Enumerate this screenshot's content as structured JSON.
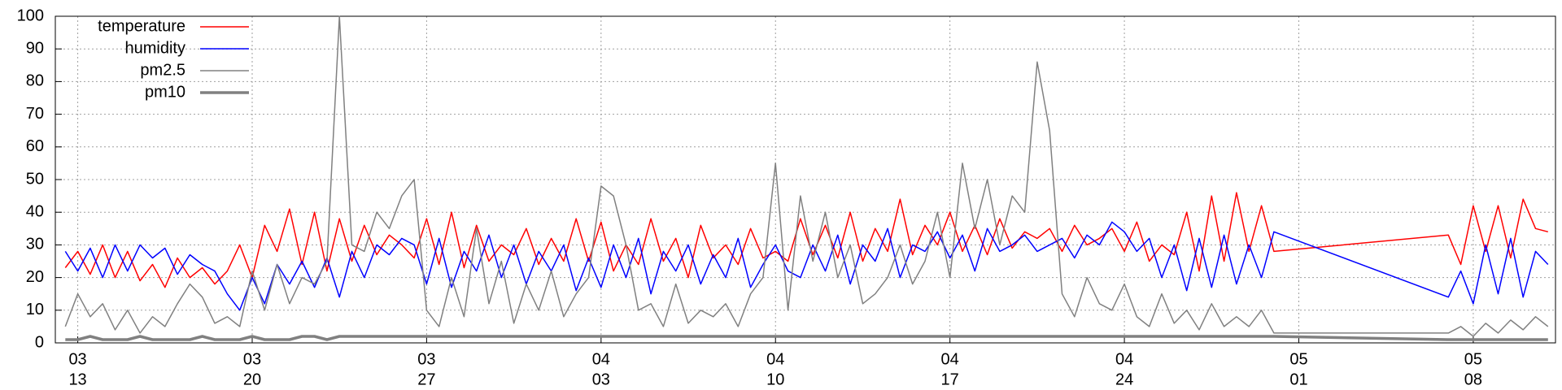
{
  "chart_data": {
    "type": "line",
    "x": [
      71.5,
      72,
      72.5,
      73,
      73.5,
      74,
      74.5,
      75,
      75.5,
      76,
      76.5,
      77,
      77.5,
      78,
      78.5,
      79,
      79.5,
      80,
      80.5,
      81,
      81.5,
      82,
      82.5,
      83,
      83.5,
      84,
      84.5,
      85,
      85.5,
      86,
      86.5,
      87,
      87.5,
      88,
      88.5,
      89,
      89.5,
      90,
      90.5,
      91,
      91.5,
      92,
      92.5,
      93,
      93.5,
      94,
      94.5,
      95,
      95.5,
      96,
      96.5,
      97,
      97.5,
      98,
      98.5,
      99,
      99.5,
      100,
      100.5,
      101,
      101.5,
      102,
      102.5,
      103,
      103.5,
      104,
      104.5,
      105,
      105.5,
      106,
      106.5,
      107,
      107.5,
      108,
      108.5,
      109,
      109.5,
      110,
      110.5,
      111,
      111.5,
      112,
      112.5,
      113,
      113.5,
      114,
      114.5,
      115,
      115.5,
      116,
      116.5,
      117,
      117.5,
      118,
      118.5,
      119,
      119.5,
      120,
      127,
      127.5,
      128,
      128.5,
      129,
      129.5,
      130,
      130.5,
      131
    ],
    "series": [
      {
        "name": "temperature",
        "color": "#ff0000",
        "width": 1.5,
        "values": [
          23,
          28,
          21,
          30,
          20,
          28,
          19,
          24,
          17,
          26,
          20,
          23,
          18,
          22,
          30,
          20,
          36,
          28,
          41,
          24,
          40,
          22,
          38,
          25,
          36,
          27,
          33,
          30,
          26,
          38,
          24,
          40,
          23,
          36,
          25,
          30,
          27,
          35,
          24,
          32,
          25,
          38,
          25,
          37,
          22,
          30,
          24,
          38,
          25,
          32,
          20,
          36,
          26,
          30,
          24,
          35,
          26,
          28,
          25,
          38,
          27,
          36,
          26,
          40,
          25,
          35,
          28,
          44,
          27,
          36,
          30,
          40,
          28,
          36,
          27,
          38,
          29,
          34,
          32,
          35,
          28,
          36,
          30,
          32,
          35,
          28,
          37,
          25,
          30,
          27,
          40,
          22,
          45,
          25,
          46,
          28,
          42,
          28,
          33,
          24,
          42,
          28,
          42,
          26,
          44,
          35,
          34
        ]
      },
      {
        "name": "humidity",
        "color": "#0000ff",
        "width": 1.5,
        "values": [
          28,
          22,
          29,
          20,
          30,
          22,
          30,
          26,
          29,
          21,
          27,
          24,
          22,
          15,
          10,
          20,
          12,
          24,
          18,
          25,
          17,
          26,
          14,
          28,
          20,
          30,
          27,
          32,
          30,
          18,
          32,
          17,
          28,
          22,
          33,
          20,
          30,
          18,
          28,
          22,
          30,
          16,
          26,
          17,
          30,
          20,
          32,
          15,
          28,
          22,
          30,
          18,
          27,
          20,
          32,
          17,
          24,
          30,
          22,
          20,
          30,
          22,
          33,
          18,
          30,
          25,
          35,
          20,
          30,
          28,
          34,
          26,
          33,
          22,
          35,
          28,
          30,
          33,
          28,
          30,
          32,
          26,
          33,
          30,
          37,
          34,
          28,
          32,
          20,
          30,
          16,
          32,
          17,
          33,
          18,
          30,
          20,
          34,
          14,
          22,
          12,
          30,
          15,
          32,
          14,
          28,
          24
        ]
      },
      {
        "name": "pm2.5",
        "color": "#808080",
        "width": 1.5,
        "values": [
          5,
          15,
          8,
          12,
          4,
          10,
          3,
          8,
          5,
          12,
          18,
          14,
          6,
          8,
          5,
          22,
          10,
          24,
          12,
          20,
          18,
          25,
          100,
          30,
          28,
          40,
          35,
          45,
          50,
          10,
          5,
          20,
          8,
          35,
          12,
          25,
          6,
          18,
          10,
          22,
          8,
          15,
          20,
          48,
          45,
          30,
          10,
          12,
          5,
          18,
          6,
          10,
          8,
          12,
          5,
          15,
          20,
          55,
          10,
          45,
          25,
          40,
          20,
          30,
          12,
          15,
          20,
          30,
          18,
          25,
          40,
          20,
          55,
          35,
          50,
          30,
          45,
          40,
          86,
          65,
          15,
          8,
          20,
          12,
          10,
          18,
          8,
          5,
          15,
          6,
          10,
          4,
          12,
          5,
          8,
          5,
          10,
          3,
          3,
          5,
          2,
          6,
          3,
          7,
          4,
          8,
          5
        ]
      },
      {
        "name": "pm10",
        "color": "#808080",
        "width": 3.5,
        "values": [
          1,
          1,
          2,
          1,
          1,
          1,
          2,
          1,
          1,
          1,
          1,
          2,
          1,
          1,
          1,
          2,
          1,
          1,
          1,
          2,
          2,
          1,
          2,
          2,
          2,
          2,
          2,
          2,
          2,
          2,
          2,
          2,
          2,
          2,
          2,
          2,
          2,
          2,
          2,
          2,
          2,
          2,
          2,
          2,
          2,
          2,
          2,
          2,
          2,
          2,
          2,
          2,
          2,
          2,
          2,
          2,
          2,
          2,
          2,
          2,
          2,
          2,
          2,
          2,
          2,
          2,
          2,
          2,
          2,
          2,
          2,
          2,
          2,
          2,
          2,
          2,
          2,
          2,
          2,
          2,
          2,
          2,
          2,
          2,
          2,
          2,
          2,
          2,
          2,
          2,
          2,
          2,
          2,
          2,
          2,
          2,
          2,
          2,
          1,
          1,
          1,
          1,
          1,
          1,
          1,
          1,
          1
        ]
      }
    ],
    "xlim": [
      71.1,
      131.3
    ],
    "ylim": [
      0,
      100
    ],
    "yticks": [
      0,
      10,
      20,
      30,
      40,
      50,
      60,
      70,
      80,
      90,
      100
    ],
    "xticks": [
      {
        "value": 72,
        "label": [
          "03",
          "13"
        ]
      },
      {
        "value": 79,
        "label": [
          "03",
          "20"
        ]
      },
      {
        "value": 86,
        "label": [
          "03",
          "27"
        ]
      },
      {
        "value": 93,
        "label": [
          "04",
          "03"
        ]
      },
      {
        "value": 100,
        "label": [
          "04",
          "10"
        ]
      },
      {
        "value": 107,
        "label": [
          "04",
          "17"
        ]
      },
      {
        "value": 114,
        "label": [
          "04",
          "24"
        ]
      },
      {
        "value": 121,
        "label": [
          "05",
          "01"
        ]
      },
      {
        "value": 128,
        "label": [
          "05",
          "08"
        ]
      }
    ],
    "grid": true,
    "legend": "top-left"
  }
}
